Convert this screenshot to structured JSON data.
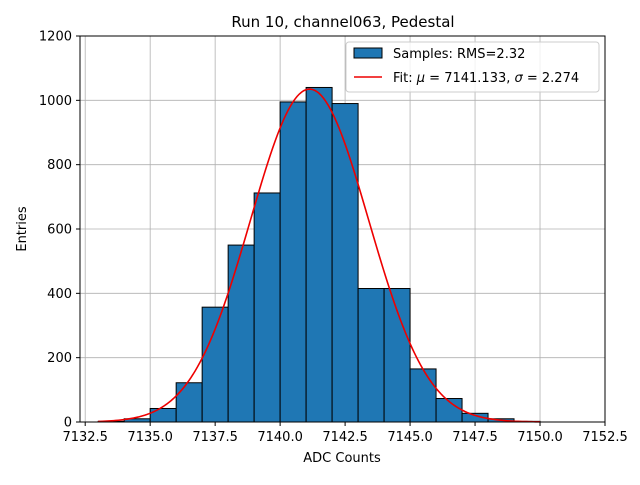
{
  "chart_data": {
    "type": "bar",
    "title": "Run 10, channel063, Pedestal",
    "xlabel": "ADC Counts",
    "ylabel": "Entries",
    "xlim": [
      7132.3,
      7152.5
    ],
    "ylim": [
      0,
      1200
    ],
    "grid": true,
    "legend_position": "top-right",
    "x_ticks": [
      7132.5,
      7135.0,
      7137.5,
      7140.0,
      7142.5,
      7145.0,
      7147.5,
      7150.0,
      7152.5
    ],
    "x_tick_labels": [
      "7132.5",
      "7135.0",
      "7137.5",
      "7140.0",
      "7142.5",
      "7145.0",
      "7147.5",
      "7150.0",
      "7152.5"
    ],
    "y_ticks": [
      0,
      200,
      400,
      600,
      800,
      1000,
      1200
    ],
    "y_tick_labels": [
      "0",
      "200",
      "400",
      "600",
      "800",
      "1000",
      "1200"
    ],
    "histogram": {
      "name": "Samples: RMS=2.32",
      "bin_edges": [
        7133,
        7134,
        7135,
        7136,
        7137,
        7138,
        7139,
        7140,
        7141,
        7142,
        7143,
        7144,
        7145,
        7146,
        7147,
        7148,
        7149,
        7150
      ],
      "counts": [
        2,
        10,
        42,
        122,
        357,
        550,
        712,
        995,
        1040,
        990,
        415,
        415,
        165,
        73,
        27,
        10,
        2
      ],
      "color": "#1f77b4",
      "edge_color": "#000000"
    },
    "fit": {
      "name": "Fit: μ = 7141.133, σ = 2.274",
      "mu": 7141.133,
      "sigma": 2.274,
      "amplitude": 1035,
      "x_range": [
        7133,
        7150
      ],
      "color": "#ee0000"
    }
  },
  "legend": {
    "histogram_label": "Samples: RMS=2.32",
    "fit_label_prefix": "Fit: ",
    "fit_mu_symbol": "μ",
    "fit_mu_value": " = 7141.133, ",
    "fit_sigma_symbol": "σ",
    "fit_sigma_value": " = 2.274"
  }
}
